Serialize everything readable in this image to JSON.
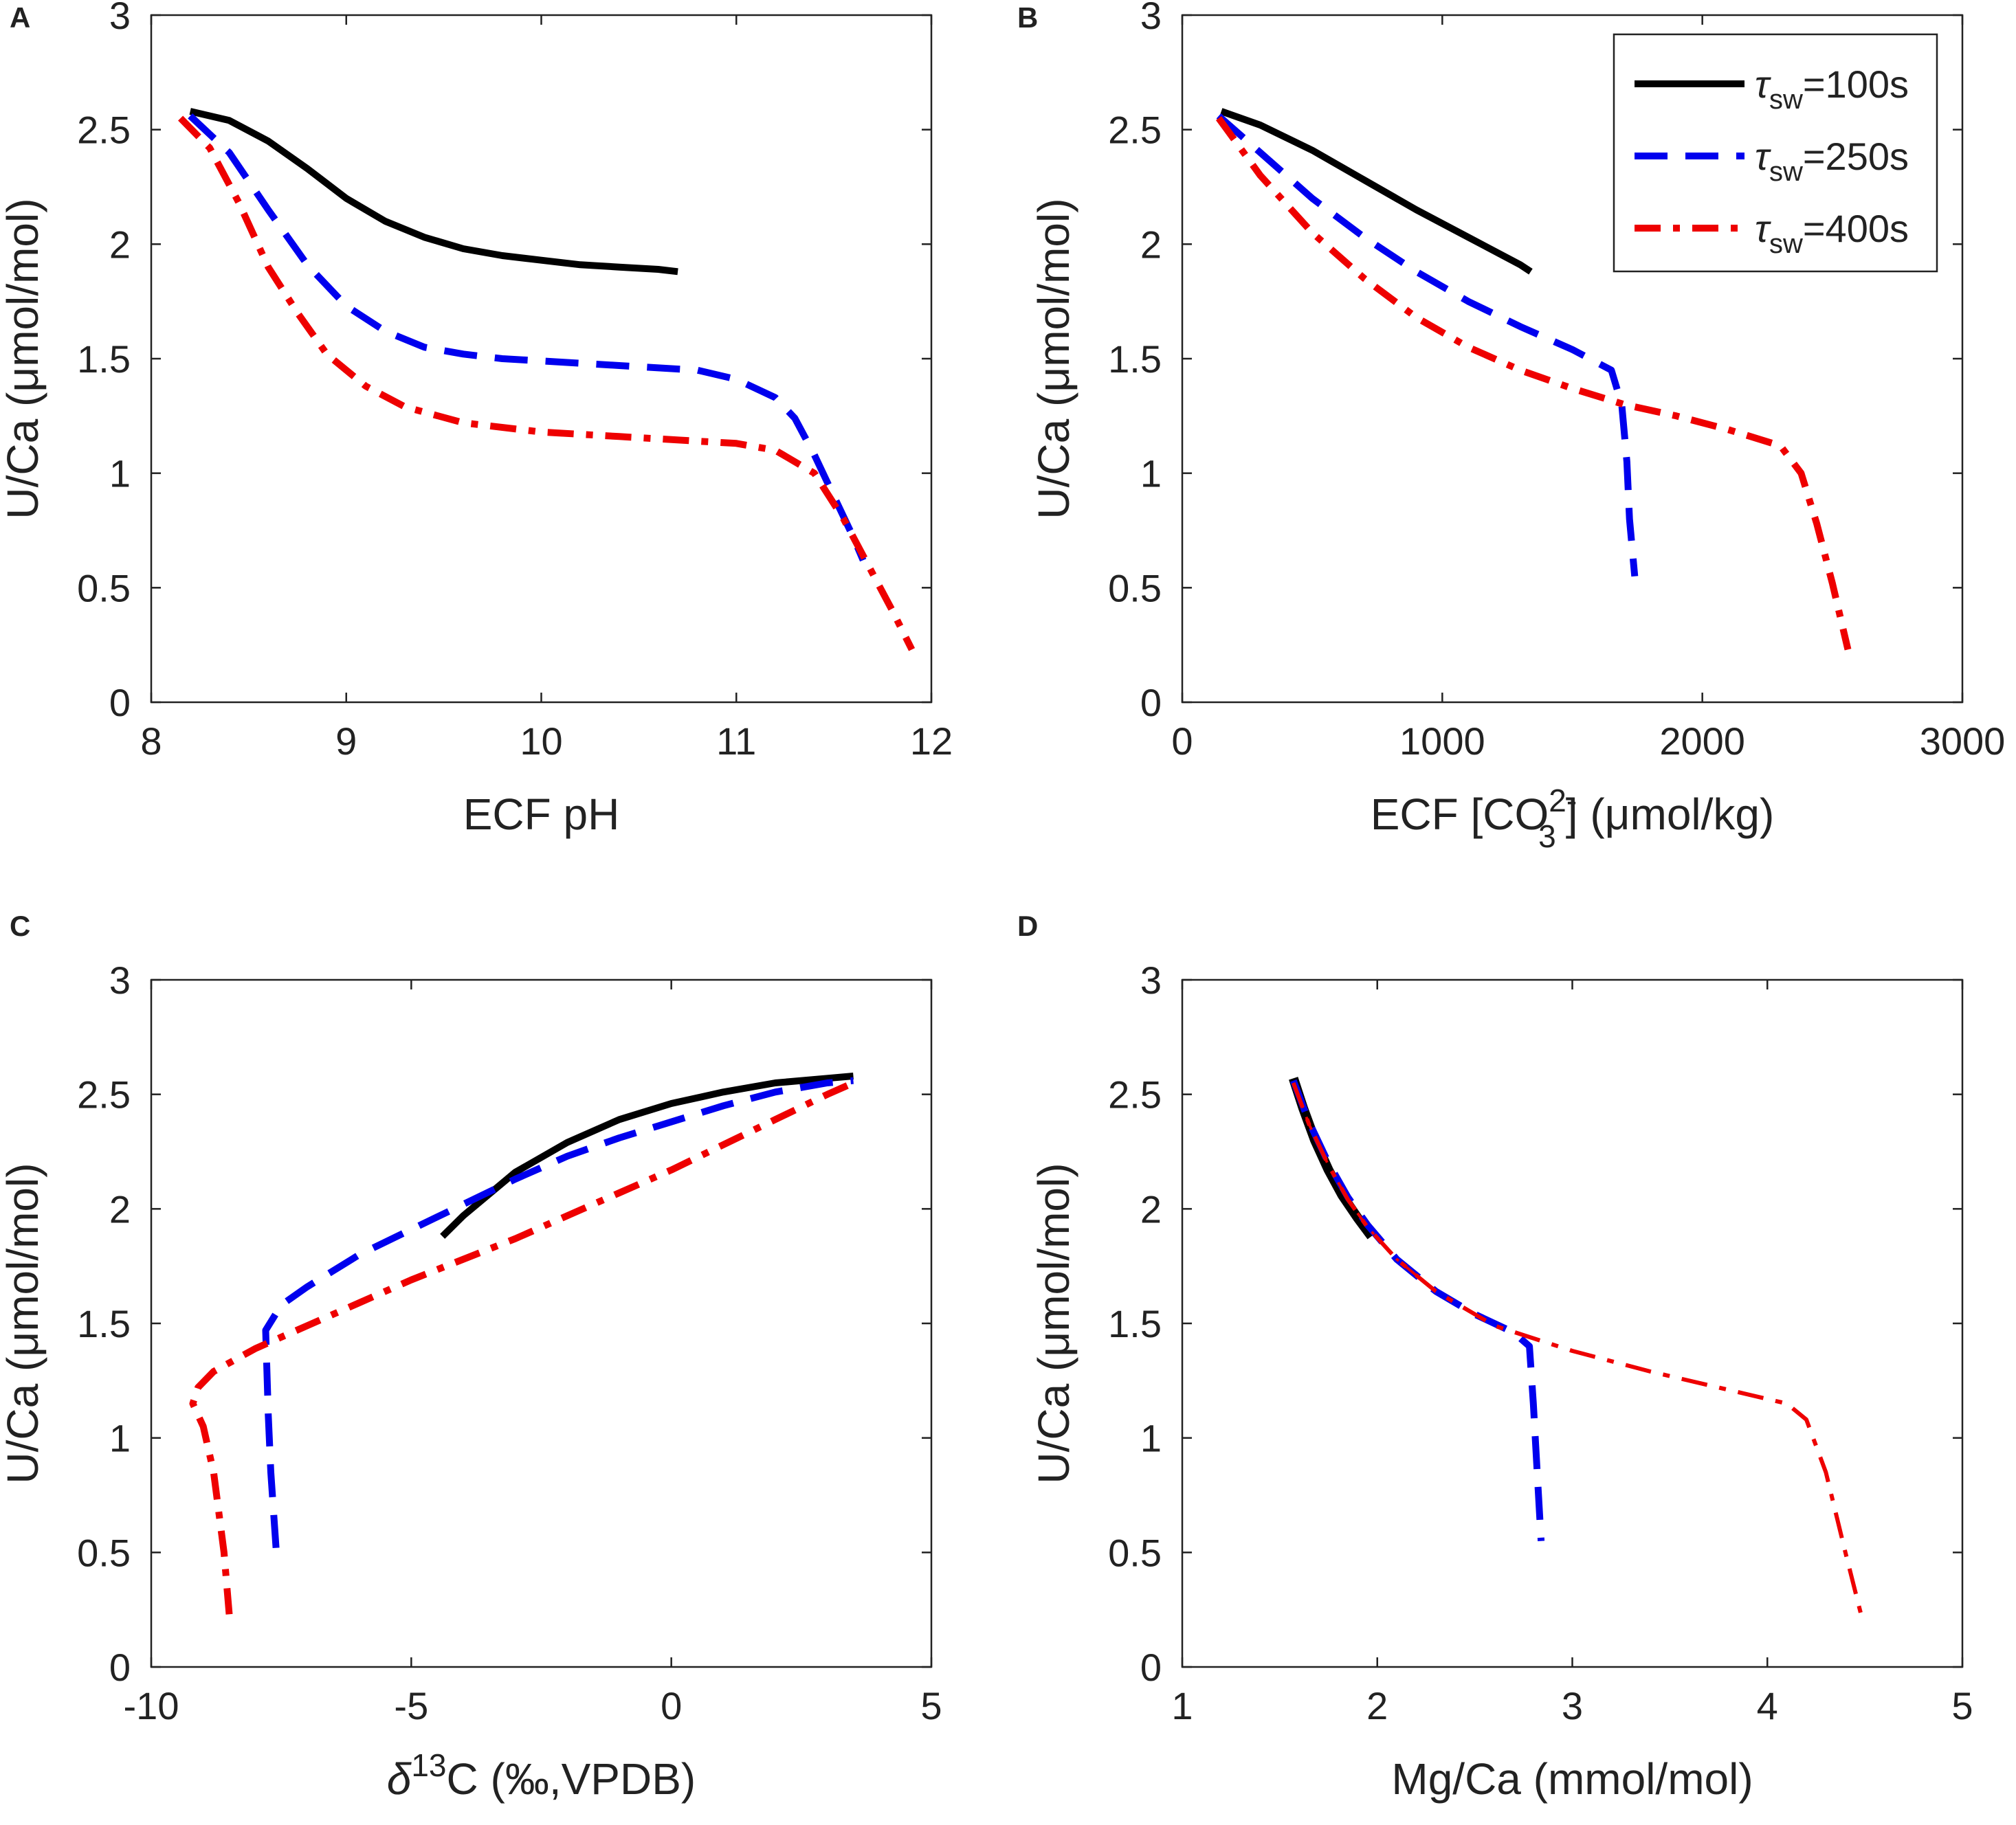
{
  "legend": [
    {
      "symbol": "τ",
      "sub": "sw",
      "suffix": "=100s",
      "color": "#000000",
      "dash": "solid"
    },
    {
      "symbol": "τ",
      "sub": "sw",
      "suffix": "=250s",
      "color": "#0000ee",
      "dash": "dashed"
    },
    {
      "symbol": "τ",
      "sub": "sw",
      "suffix": "=400s",
      "color": "#ee0000",
      "dash": "dashdot"
    }
  ],
  "chart_data": [
    {
      "panel": "A",
      "type": "line",
      "xlabel": "ECF pH",
      "ylabel": "U/Ca (μmol/mol)",
      "xlim": [
        8,
        12
      ],
      "ylim": [
        0,
        3
      ],
      "xticks": [
        "8",
        "9",
        "10",
        "11",
        "12"
      ],
      "yticks": [
        "0",
        "0.5",
        "1",
        "1.5",
        "2",
        "2.5",
        "3"
      ],
      "series": [
        {
          "name": "τsw=100s",
          "x": [
            8.2,
            8.4,
            8.6,
            8.8,
            9.0,
            9.2,
            9.4,
            9.6,
            9.8,
            10.0,
            10.2,
            10.4,
            10.6,
            10.7
          ],
          "y": [
            2.58,
            2.54,
            2.45,
            2.33,
            2.2,
            2.1,
            2.03,
            1.98,
            1.95,
            1.93,
            1.91,
            1.9,
            1.89,
            1.88
          ]
        },
        {
          "name": "τsw=250s",
          "x": [
            8.2,
            8.4,
            8.6,
            8.8,
            9.0,
            9.2,
            9.4,
            9.6,
            9.8,
            10.0,
            10.4,
            10.8,
            11.0,
            11.2,
            11.3,
            11.4,
            11.5,
            11.6,
            11.65
          ],
          "y": [
            2.56,
            2.4,
            2.15,
            1.91,
            1.73,
            1.62,
            1.55,
            1.52,
            1.5,
            1.49,
            1.47,
            1.45,
            1.41,
            1.33,
            1.24,
            1.08,
            0.9,
            0.72,
            0.62
          ]
        },
        {
          "name": "τsw=400s",
          "x": [
            8.15,
            8.3,
            8.45,
            8.6,
            8.75,
            8.9,
            9.1,
            9.3,
            9.6,
            10.0,
            10.4,
            10.8,
            11.0,
            11.2,
            11.4,
            11.55,
            11.7,
            11.8,
            11.9
          ],
          "y": [
            2.55,
            2.42,
            2.18,
            1.9,
            1.7,
            1.52,
            1.38,
            1.29,
            1.22,
            1.18,
            1.16,
            1.14,
            1.13,
            1.1,
            1.0,
            0.8,
            0.56,
            0.4,
            0.23
          ]
        }
      ]
    },
    {
      "panel": "B",
      "type": "line",
      "xlabel_main": "ECF [CO",
      "xlabel_sup": "2-",
      "xlabel_sub": "3",
      "xlabel_tail": "] (μmol/kg)",
      "ylabel": "U/Ca (μmol/mol)",
      "xlim": [
        0,
        3000
      ],
      "ylim": [
        0,
        3
      ],
      "xticks": [
        "0",
        "1000",
        "2000",
        "3000"
      ],
      "yticks": [
        "0",
        "0.5",
        "1",
        "1.5",
        "2",
        "2.5",
        "3"
      ],
      "series": [
        {
          "name": "τsw=100s",
          "x": [
            150,
            300,
            500,
            700,
            900,
            1100,
            1300,
            1340
          ],
          "y": [
            2.58,
            2.52,
            2.41,
            2.28,
            2.15,
            2.03,
            1.91,
            1.88
          ]
        },
        {
          "name": "τsw=250s",
          "x": [
            140,
            300,
            500,
            700,
            900,
            1100,
            1300,
            1500,
            1650,
            1690,
            1710,
            1720,
            1740
          ],
          "y": [
            2.56,
            2.4,
            2.2,
            2.03,
            1.88,
            1.75,
            1.64,
            1.54,
            1.45,
            1.3,
            1.05,
            0.8,
            0.55
          ]
        },
        {
          "name": "τsw=400s",
          "x": [
            140,
            300,
            500,
            700,
            900,
            1100,
            1300,
            1500,
            1700,
            1900,
            2100,
            2300,
            2380,
            2440,
            2500,
            2560
          ],
          "y": [
            2.55,
            2.3,
            2.05,
            1.85,
            1.68,
            1.55,
            1.45,
            1.37,
            1.3,
            1.25,
            1.19,
            1.12,
            1.0,
            0.78,
            0.52,
            0.23
          ]
        }
      ]
    },
    {
      "panel": "C",
      "type": "line",
      "xlabel_delta": "δ",
      "xlabel_sup": "13",
      "xlabel_tail": "C (‰,VPDB)",
      "ylabel": "U/Ca (μmol/mol)",
      "xlim": [
        -10,
        5
      ],
      "ylim": [
        0,
        3
      ],
      "xticks": [
        "-10",
        "-5",
        "0",
        "5"
      ],
      "yticks": [
        "0",
        "0.5",
        "1",
        "1.5",
        "2",
        "2.5",
        "3"
      ],
      "series": [
        {
          "name": "τsw=100s",
          "x": [
            -4.4,
            -4.0,
            -3.0,
            -2.0,
            -1.0,
            0.0,
            1.0,
            2.0,
            3.0,
            3.5
          ],
          "y": [
            1.88,
            1.97,
            2.16,
            2.29,
            2.39,
            2.46,
            2.51,
            2.55,
            2.57,
            2.58
          ]
        },
        {
          "name": "τsw=250s",
          "x": [
            -7.6,
            -7.7,
            -7.75,
            -7.8,
            -7.5,
            -7.0,
            -6.0,
            -5.0,
            -4.0,
            -3.0,
            -2.0,
            -1.0,
            0.0,
            1.0,
            2.0,
            3.0,
            3.5
          ],
          "y": [
            0.52,
            0.85,
            1.1,
            1.47,
            1.58,
            1.66,
            1.8,
            1.91,
            2.02,
            2.13,
            2.23,
            2.31,
            2.38,
            2.45,
            2.51,
            2.55,
            2.56
          ]
        },
        {
          "name": "τsw=400s",
          "x": [
            -8.5,
            -8.6,
            -8.8,
            -9.0,
            -9.2,
            -9.1,
            -8.8,
            -8.0,
            -7.0,
            -6.0,
            -5.0,
            -4.0,
            -3.0,
            -2.0,
            -1.0,
            0.0,
            1.0,
            2.0,
            3.0,
            3.5
          ],
          "y": [
            0.23,
            0.5,
            0.85,
            1.05,
            1.15,
            1.22,
            1.29,
            1.39,
            1.49,
            1.59,
            1.69,
            1.78,
            1.87,
            1.97,
            2.07,
            2.17,
            2.28,
            2.39,
            2.5,
            2.55
          ]
        }
      ]
    },
    {
      "panel": "D",
      "type": "line",
      "xlabel": "Mg/Ca (mmol/mol)",
      "ylabel": "U/Ca (μmol/mol)",
      "xlim": [
        1,
        5
      ],
      "ylim": [
        0,
        3
      ],
      "xticks": [
        "1",
        "2",
        "3",
        "4",
        "5"
      ],
      "yticks": [
        "0",
        "0.5",
        "1",
        "1.5",
        "2",
        "2.5",
        "3"
      ],
      "series": [
        {
          "name": "τsw=100s",
          "x": [
            1.57,
            1.62,
            1.68,
            1.75,
            1.82,
            1.9,
            1.97
          ],
          "y": [
            2.57,
            2.44,
            2.3,
            2.17,
            2.06,
            1.96,
            1.88
          ]
        },
        {
          "name": "τsw=250s",
          "x": [
            1.57,
            1.65,
            1.75,
            1.85,
            1.95,
            2.1,
            2.3,
            2.5,
            2.7,
            2.78,
            2.8,
            2.82,
            2.84
          ],
          "y": [
            2.56,
            2.38,
            2.2,
            2.05,
            1.93,
            1.78,
            1.64,
            1.54,
            1.46,
            1.4,
            1.15,
            0.85,
            0.55
          ]
        },
        {
          "name": "τsw=400s",
          "x": [
            1.57,
            1.65,
            1.75,
            1.85,
            1.95,
            2.1,
            2.3,
            2.6,
            3.0,
            3.4,
            3.8,
            4.1,
            4.2,
            4.3,
            4.4,
            4.48
          ],
          "y": [
            2.55,
            2.37,
            2.19,
            2.04,
            1.92,
            1.78,
            1.64,
            1.49,
            1.38,
            1.29,
            1.21,
            1.15,
            1.08,
            0.85,
            0.5,
            0.23
          ]
        }
      ]
    }
  ]
}
